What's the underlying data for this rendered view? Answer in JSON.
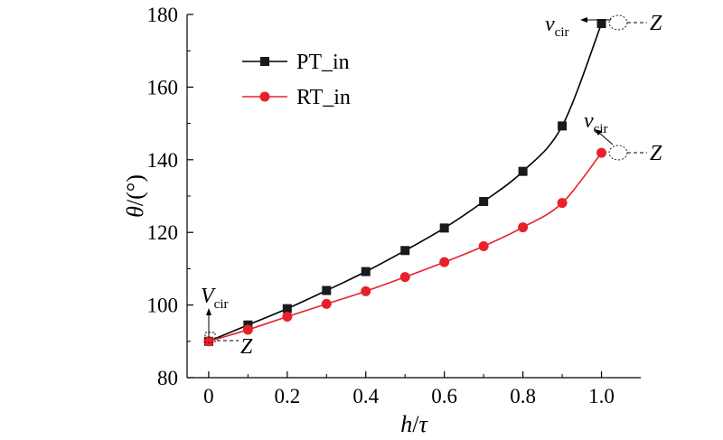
{
  "chart_data": {
    "type": "line",
    "xlabel_main": "h",
    "xlabel_sep": "/",
    "xlabel_sub": "τ",
    "ylabel_main": "θ",
    "ylabel_unit": "/(°)",
    "xlim": [
      -0.055,
      1.1
    ],
    "ylim": [
      80,
      180
    ],
    "x_ticks": [
      0,
      0.2,
      0.4,
      0.6,
      0.8,
      1.0
    ],
    "x_tick_labels": [
      "0",
      "0.2",
      "0.4",
      "0.6",
      "0.8",
      "1.0"
    ],
    "y_ticks": [
      80,
      100,
      120,
      140,
      160,
      180
    ],
    "y_tick_labels": [
      "80",
      "100",
      "120",
      "140",
      "160",
      "180"
    ],
    "legend_position": "top-left",
    "series": [
      {
        "name": "PT_in",
        "color": "#000000",
        "marker": "square",
        "x": [
          0,
          0.1,
          0.2,
          0.3,
          0.4,
          0.5,
          0.6,
          0.7,
          0.8,
          0.9,
          1.0
        ],
        "y": [
          90,
          94.5,
          99,
          104,
          109.2,
          115,
          121.2,
          128.5,
          136.8,
          149.3,
          177.5
        ]
      },
      {
        "name": "RT_in",
        "color": "#e8202a",
        "marker": "circle",
        "x": [
          0,
          0.1,
          0.2,
          0.3,
          0.4,
          0.5,
          0.6,
          0.7,
          0.8,
          0.9,
          1.0
        ],
        "y": [
          90,
          93.2,
          96.8,
          100.3,
          103.8,
          107.7,
          111.8,
          116.2,
          121.4,
          128.1,
          141.9
        ]
      }
    ],
    "annotations": [
      {
        "main": "v",
        "sub": "cir",
        "style": "italic-lower"
      },
      {
        "main": "v",
        "sub": "cir",
        "style": "italic-lower"
      },
      {
        "main": "V",
        "sub": "cir",
        "style": "italic-upper"
      },
      {
        "text": "Z"
      },
      {
        "text": "Z"
      },
      {
        "text": "Z"
      }
    ]
  }
}
